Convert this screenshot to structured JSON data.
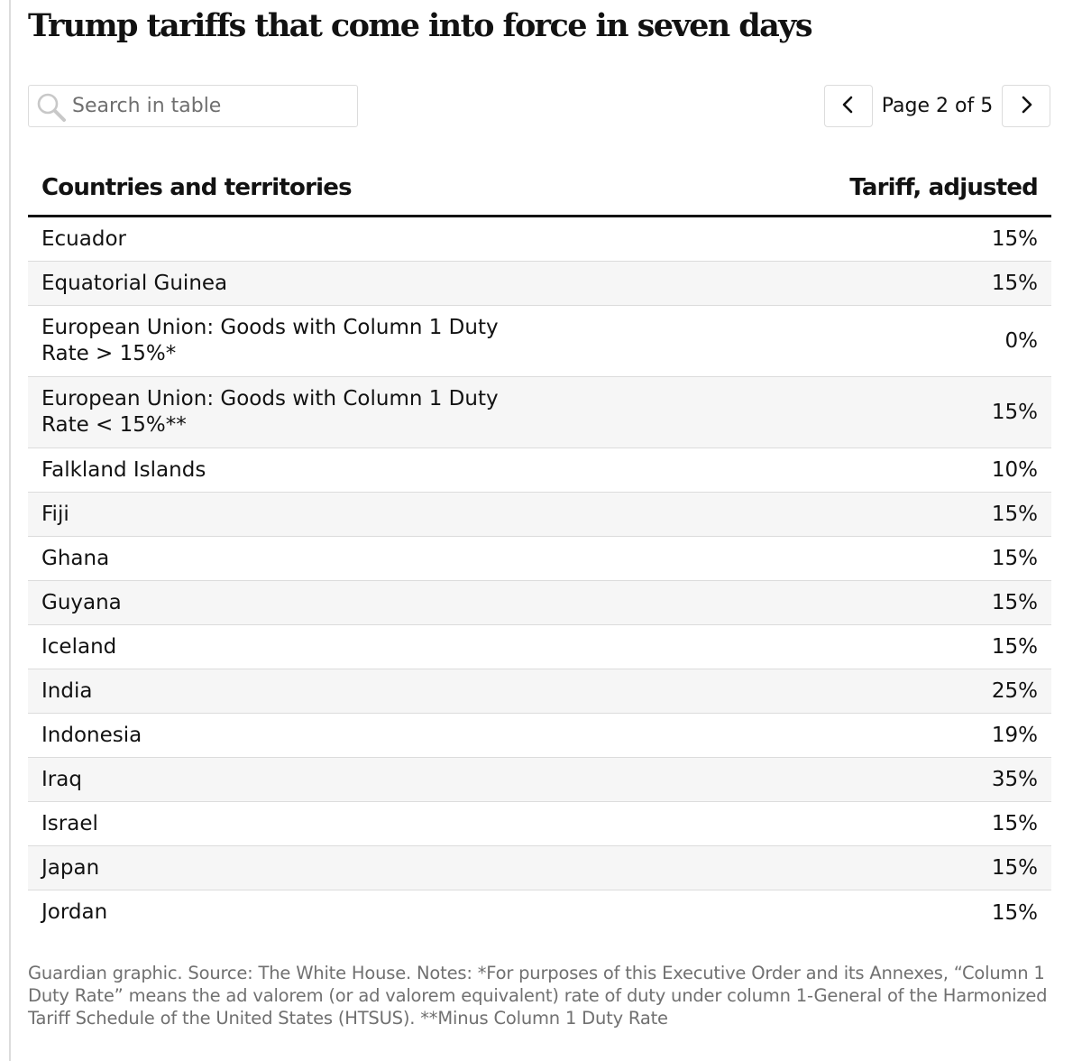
{
  "title": "Trump tariffs that come into force in seven days",
  "search": {
    "placeholder": "Search in table",
    "value": ""
  },
  "pagination": {
    "label": "Page 2 of 5"
  },
  "table": {
    "columns": [
      "Countries and territories",
      "Tariff, adjusted"
    ],
    "rows": [
      {
        "country": "Ecuador",
        "tariff": "15%"
      },
      {
        "country": "Equatorial Guinea",
        "tariff": "15%"
      },
      {
        "country": "European Union: Goods with Column 1 Duty Rate > 15%*",
        "tariff": "0%"
      },
      {
        "country": "European Union: Goods with Column 1 Duty Rate < 15%**",
        "tariff": "15%"
      },
      {
        "country": "Falkland Islands",
        "tariff": "10%"
      },
      {
        "country": "Fiji",
        "tariff": "15%"
      },
      {
        "country": "Ghana",
        "tariff": "15%"
      },
      {
        "country": "Guyana",
        "tariff": "15%"
      },
      {
        "country": "Iceland",
        "tariff": "15%"
      },
      {
        "country": "India",
        "tariff": "25%"
      },
      {
        "country": "Indonesia",
        "tariff": "19%"
      },
      {
        "country": "Iraq",
        "tariff": "35%"
      },
      {
        "country": "Israel",
        "tariff": "15%"
      },
      {
        "country": "Japan",
        "tariff": "15%"
      },
      {
        "country": "Jordan",
        "tariff": "15%"
      }
    ]
  },
  "footer": "Guardian graphic. Source: The White House. Notes: *For purposes of this Executive Order and its Annexes, “Column 1 Duty Rate” means the ad valorem (or ad valorem equivalent) rate of duty under column 1-General of the Harmonized Tariff Schedule of the United States (HTSUS). **Minus Column 1 Duty Rate",
  "icons": {
    "search": "search-icon",
    "prev": "chevron-left-icon",
    "next": "chevron-right-icon"
  }
}
